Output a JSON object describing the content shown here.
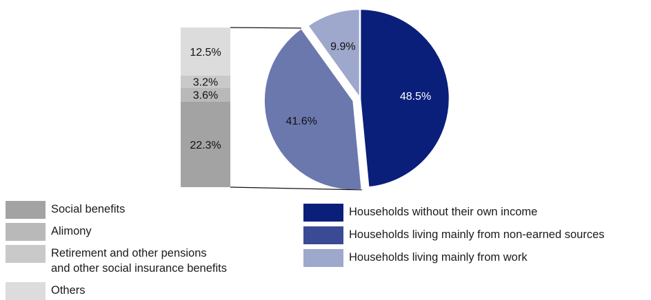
{
  "chart_data": [
    {
      "type": "pie",
      "slices": [
        {
          "label": "Households without their own income",
          "value": 48.5,
          "value_label": "48.5%",
          "color": "#0a1f7a"
        },
        {
          "label": "Households living mainly from non-earned sources",
          "value": 41.6,
          "value_label": "41.6%",
          "color": "#6b78ad"
        },
        {
          "label": "Households living mainly from work",
          "value": 9.9,
          "value_label": "9.9%",
          "color": "#9ea7cc"
        }
      ],
      "exploded_slice": "Households living mainly from non-earned sources",
      "legend_position": "bottom-right"
    },
    {
      "type": "bar",
      "stacked": true,
      "breakdown_of": "Households living mainly from non-earned sources",
      "segments": [
        {
          "label": "Social benefits",
          "value": 22.3,
          "value_label": "22.3%",
          "color": "#a3a3a3"
        },
        {
          "label": "Alimony",
          "value": 3.6,
          "value_label": "3.6%",
          "color": "#b9b9b9"
        },
        {
          "label": "Retirement and other pensions and other social insurance benefits",
          "value": 3.2,
          "value_label": "3.2%",
          "color": "#c9c9c9"
        },
        {
          "label": "Others",
          "value": 12.5,
          "value_label": "12.5%",
          "color": "#dcdcdc"
        }
      ],
      "legend_position": "bottom-left"
    }
  ],
  "legend_left": [
    {
      "lines": [
        "Social benefits"
      ],
      "color": "#a3a3a3"
    },
    {
      "lines": [
        "Alimony"
      ],
      "color": "#b9b9b9"
    },
    {
      "lines": [
        "Retirement and other pensions",
        "and other social insurance benefits"
      ],
      "color": "#c9c9c9"
    },
    {
      "lines": [
        "Others"
      ],
      "color": "#dcdcdc"
    }
  ],
  "legend_right": [
    {
      "lines": [
        "Households without their own income"
      ],
      "color": "#0a1f7a"
    },
    {
      "lines": [
        "Households living mainly from non-earned sources"
      ],
      "color": "#3a4a94"
    },
    {
      "lines": [
        "Households living mainly from work"
      ],
      "color": "#9ea7cc"
    }
  ]
}
